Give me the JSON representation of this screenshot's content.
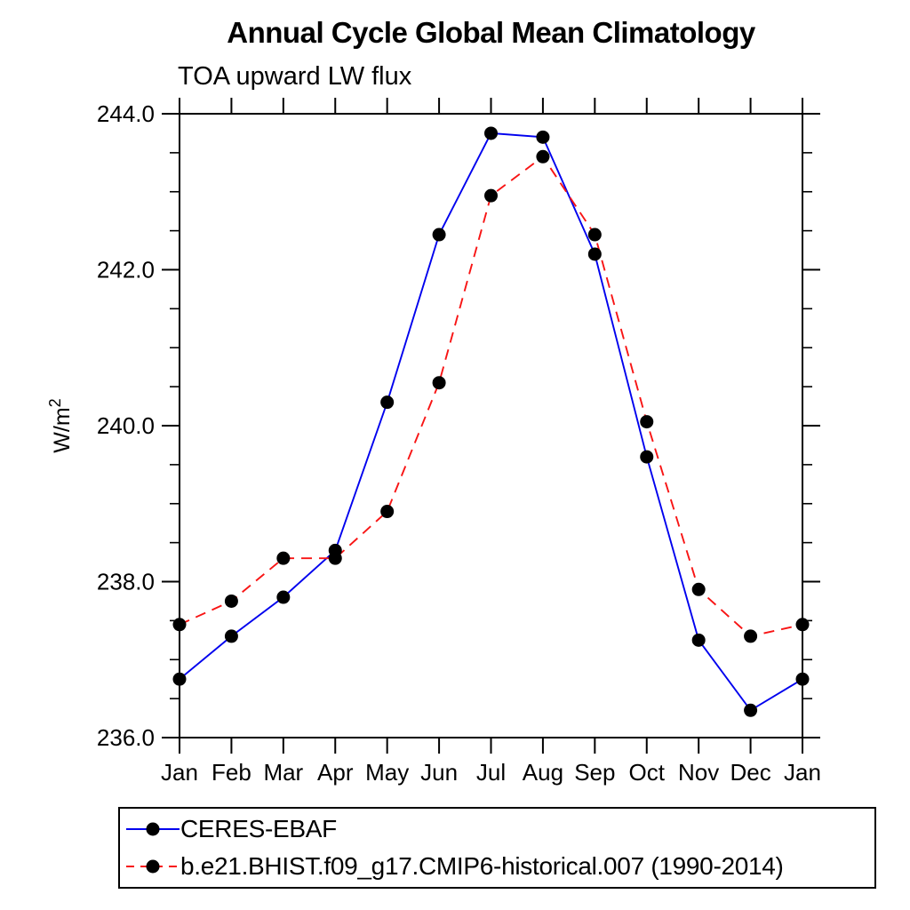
{
  "title": "Annual Cycle Global Mean Climatology",
  "subtitle": "TOA upward LW flux",
  "chart_data": {
    "type": "line",
    "categories": [
      "Jan",
      "Feb",
      "Mar",
      "Apr",
      "May",
      "Jun",
      "Jul",
      "Aug",
      "Sep",
      "Oct",
      "Nov",
      "Dec",
      "Jan"
    ],
    "series": [
      {
        "name": "CERES-EBAF",
        "color": "#0000ee",
        "line_style": "solid",
        "marker": "filled-circle",
        "marker_color": "#000000",
        "values": [
          236.75,
          237.3,
          237.8,
          238.4,
          240.3,
          242.45,
          243.75,
          243.7,
          242.2,
          239.6,
          237.25,
          236.35,
          236.75
        ]
      },
      {
        "name": "b.e21.BHIST.f09_g17.CMIP6-historical.007 (1990-2014)",
        "color": "#f81414",
        "line_style": "dashed",
        "marker": "filled-circle",
        "marker_color": "#000000",
        "values": [
          237.45,
          237.75,
          238.3,
          238.3,
          238.9,
          240.55,
          242.95,
          243.45,
          242.45,
          240.05,
          237.9,
          237.3,
          237.45
        ]
      }
    ],
    "xlabel": "",
    "ylabel": "W/m²",
    "ylim": [
      236.0,
      244.0
    ],
    "ytick_interval": 2.0,
    "yminor_interval": 0.5,
    "ytick_labels": [
      "244.0",
      "242.0",
      "240.0",
      "238.0",
      "236.0"
    ],
    "grid": false,
    "frame": "box-all-sides-outward-ticks",
    "legend_position": "bottom-left-box"
  }
}
